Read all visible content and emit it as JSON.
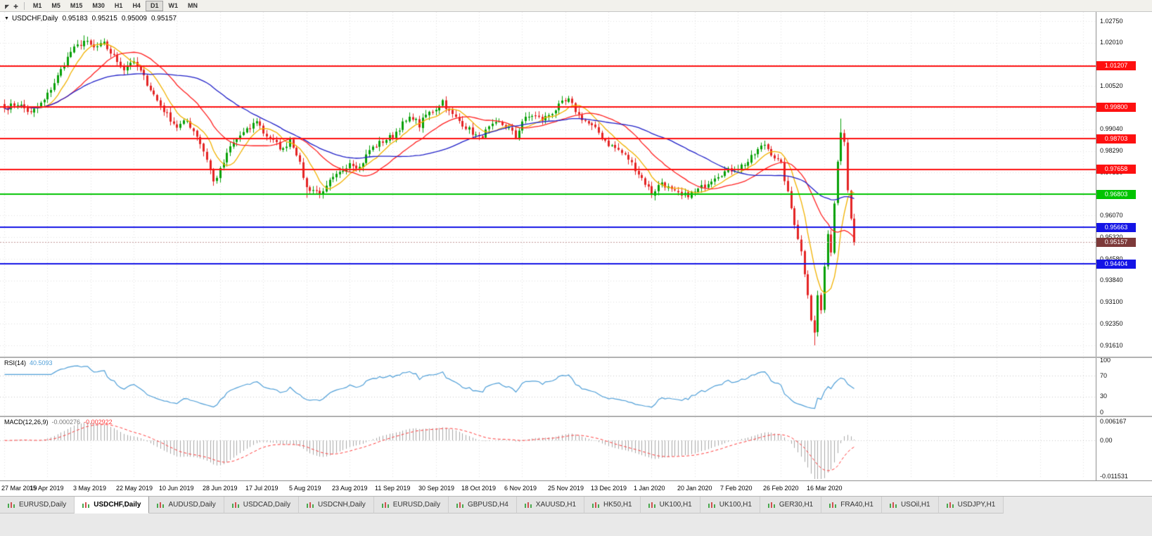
{
  "toolbar": {
    "icons": [
      {
        "name": "cursor-icon",
        "glyph": "◤"
      },
      {
        "name": "crosshair-icon",
        "glyph": "✚"
      }
    ],
    "timeframes": [
      "M1",
      "M5",
      "M15",
      "M30",
      "H1",
      "H4",
      "D1",
      "W1",
      "MN"
    ],
    "active_timeframe": "D1"
  },
  "chart_info": {
    "symbol": "USDCHF,Daily",
    "open": "0.95183",
    "high": "0.95215",
    "low": "0.95009",
    "close": "0.95157"
  },
  "price_axis": {
    "ticks": [
      "1.02750",
      "1.02010",
      "1.01260",
      "1.00520",
      "0.99780",
      "0.99040",
      "0.98290",
      "0.97550",
      "0.96810",
      "0.96070",
      "0.95320",
      "0.94580",
      "0.93840",
      "0.93100",
      "0.92350",
      "0.91610"
    ]
  },
  "levels": [
    {
      "label": "1.01207",
      "value": 1.01207,
      "color": "#fe1010"
    },
    {
      "label": "0.99800",
      "value": 0.998,
      "color": "#fe1010"
    },
    {
      "label": "0.98703",
      "value": 0.98703,
      "color": "#fe1010"
    },
    {
      "label": "0.97658",
      "value": 0.97658,
      "color": "#fe1010"
    },
    {
      "label": "0.96803",
      "value": 0.96803,
      "color": "#00c400"
    },
    {
      "label": "0.95663",
      "value": 0.95663,
      "color": "#1414e6"
    },
    {
      "label": "0.94404",
      "value": 0.94404,
      "color": "#1414e6"
    }
  ],
  "current_price": {
    "label": "0.95157",
    "value": 0.95157,
    "box_color": "#7d3a3a"
  },
  "date_axis": {
    "labels": [
      "27 Mar 2019",
      "15 Apr 2019",
      "3 May 2019",
      "22 May 2019",
      "10 Jun 2019",
      "28 Jun 2019",
      "17 Jul 2019",
      "5 Aug 2019",
      "23 Aug 2019",
      "11 Sep 2019",
      "30 Sep 2019",
      "18 Oct 2019",
      "6 Nov 2019",
      "25 Nov 2019",
      "13 Dec 2019",
      "1 Jan 2020",
      "20 Jan 2020",
      "7 Feb 2020",
      "26 Feb 2020",
      "16 Mar 2020"
    ]
  },
  "rsi_pane": {
    "title": "RSI(14)",
    "value": "40.5093",
    "scale": [
      "100",
      "70",
      "30",
      "0"
    ],
    "guide_levels": [
      70,
      30
    ],
    "line_color": "#4f9fd8"
  },
  "macd_pane": {
    "title": "MACD(12,26,9)",
    "value_main": "-0.000276",
    "value_signal": "-0.002922",
    "scale": [
      "0.006167",
      "0.00",
      "-0.011531"
    ],
    "histogram_color": "#a8a8a8",
    "signal_color": "#ff3c3c"
  },
  "tabs": {
    "items": [
      {
        "label": "EURUSD,Daily",
        "active": false
      },
      {
        "label": "USDCHF,Daily",
        "active": true
      },
      {
        "label": "AUDUSD,Daily",
        "active": false
      },
      {
        "label": "USDCAD,Daily",
        "active": false
      },
      {
        "label": "USDCNH,Daily",
        "active": false
      },
      {
        "label": "EURUSD,Daily",
        "active": false
      },
      {
        "label": "GBPUSD,H4",
        "active": false
      },
      {
        "label": "XAUUSD,H1",
        "active": false
      },
      {
        "label": "HK50,H1",
        "active": false
      },
      {
        "label": "UK100,H1",
        "active": false
      },
      {
        "label": "UK100,H1",
        "active": false
      },
      {
        "label": "GER30,H1",
        "active": false
      },
      {
        "label": "FRA40,H1",
        "active": false
      },
      {
        "label": "USOil,H1",
        "active": false
      },
      {
        "label": "USDJPY,H1",
        "active": false
      }
    ]
  },
  "chart_data": {
    "type": "candlestick",
    "symbol": "USDCHF",
    "timeframe": "Daily",
    "bars": 257,
    "x_tick_interval_bars": 13,
    "ylim": [
      0.9161,
      1.0275
    ],
    "up_color": "#08a108",
    "down_color": "#e42424",
    "close_anchors": [
      [
        0,
        0.9975
      ],
      [
        4,
        0.9992
      ],
      [
        8,
        0.9958
      ],
      [
        12,
        1.0002
      ],
      [
        16,
        1.0085
      ],
      [
        20,
        1.017
      ],
      [
        24,
        1.0207
      ],
      [
        27,
        1.0182
      ],
      [
        30,
        1.0196
      ],
      [
        33,
        1.0152
      ],
      [
        36,
        1.011
      ],
      [
        38,
        1.0136
      ],
      [
        40,
        1.012
      ],
      [
        43,
        1.0062
      ],
      [
        46,
        1.0002
      ],
      [
        49,
        0.9952
      ],
      [
        52,
        0.9912
      ],
      [
        55,
        0.9932
      ],
      [
        58,
        0.9882
      ],
      [
        61,
        0.9802
      ],
      [
        63,
        0.9722
      ],
      [
        65,
        0.9762
      ],
      [
        68,
        0.9842
      ],
      [
        71,
        0.9882
      ],
      [
        74,
        0.9906
      ],
      [
        76,
        0.9936
      ],
      [
        78,
        0.9892
      ],
      [
        81,
        0.9862
      ],
      [
        84,
        0.9832
      ],
      [
        86,
        0.9872
      ],
      [
        88,
        0.9822
      ],
      [
        91,
        0.9702
      ],
      [
        94,
        0.9692
      ],
      [
        96,
        0.9682
      ],
      [
        98,
        0.9722
      ],
      [
        101,
        0.9752
      ],
      [
        104,
        0.9792
      ],
      [
        107,
        0.9772
      ],
      [
        110,
        0.9832
      ],
      [
        113,
        0.9856
      ],
      [
        117,
        0.9882
      ],
      [
        120,
        0.9922
      ],
      [
        123,
        0.9946
      ],
      [
        125,
        0.9916
      ],
      [
        127,
        0.9952
      ],
      [
        130,
        0.9976
      ],
      [
        132,
        1.0002
      ],
      [
        134,
        0.9962
      ],
      [
        137,
        0.9932
      ],
      [
        140,
        0.9902
      ],
      [
        143,
        0.9872
      ],
      [
        146,
        0.9906
      ],
      [
        149,
        0.9926
      ],
      [
        152,
        0.9906
      ],
      [
        154,
        0.9876
      ],
      [
        156,
        0.9932
      ],
      [
        159,
        0.9952
      ],
      [
        162,
        0.9936
      ],
      [
        165,
        0.9962
      ],
      [
        168,
        0.9992
      ],
      [
        170,
        1.0002
      ],
      [
        173,
        0.9952
      ],
      [
        176,
        0.9922
      ],
      [
        179,
        0.9892
      ],
      [
        182,
        0.9852
      ],
      [
        185,
        0.9832
      ],
      [
        188,
        0.9802
      ],
      [
        191,
        0.9752
      ],
      [
        194,
        0.9702
      ],
      [
        195,
        0.9682
      ],
      [
        198,
        0.9722
      ],
      [
        201,
        0.9692
      ],
      [
        204,
        0.9672
      ],
      [
        208,
        0.9687
      ],
      [
        211,
        0.9712
      ],
      [
        214,
        0.9742
      ],
      [
        217,
        0.9757
      ],
      [
        221,
        0.9772
      ],
      [
        224,
        0.9792
      ],
      [
        227,
        0.9832
      ],
      [
        229,
        0.9852
      ],
      [
        231,
        0.9822
      ],
      [
        234,
        0.9782
      ],
      [
        236,
        0.9682
      ],
      [
        238,
        0.9582
      ],
      [
        240,
        0.9482
      ],
      [
        242,
        0.9342
      ],
      [
        243,
        0.9252
      ],
      [
        244,
        0.9202
      ],
      [
        245,
        0.9332
      ],
      [
        246,
        0.9282
      ],
      [
        247,
        0.9422
      ],
      [
        248,
        0.9552
      ],
      [
        249,
        0.9482
      ],
      [
        250,
        0.9652
      ],
      [
        251,
        0.9802
      ],
      [
        252,
        0.9902
      ],
      [
        253,
        0.9862
      ],
      [
        254,
        0.9702
      ],
      [
        255,
        0.9602
      ],
      [
        256,
        0.95157
      ]
    ],
    "wick_overrides": [
      {
        "i": 24,
        "high": 1.0226
      },
      {
        "i": 91,
        "low": 0.9668
      },
      {
        "i": 244,
        "low": 0.9161
      },
      {
        "i": 252,
        "high": 0.994
      }
    ],
    "moving_averages": [
      {
        "name": "ma-fast",
        "period": 8,
        "color": "#f2b200"
      },
      {
        "name": "ma-mid",
        "period": 21,
        "color": "#ff2222"
      },
      {
        "name": "ma-slow",
        "period": 45,
        "color": "#2020c8"
      }
    ],
    "last_close": 0.95157
  }
}
